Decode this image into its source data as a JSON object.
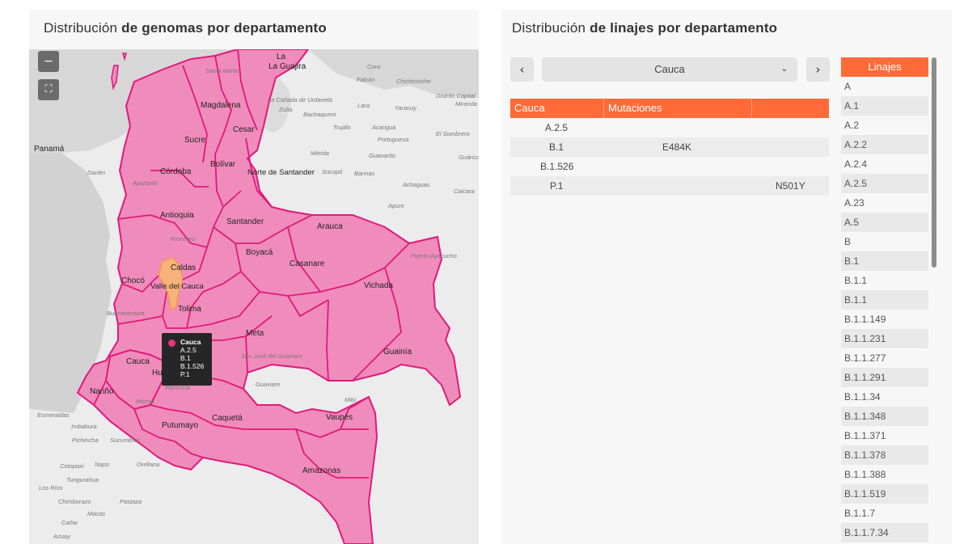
{
  "left_panel": {
    "title_regular": "Distribución ",
    "title_bold": "de genomas por departamento",
    "zoom_out_label": "−",
    "fullscreen_label": "⛶"
  },
  "map": {
    "highlight_color": "#f08cbb",
    "border_color": "#e0197b",
    "selected_color": "#f6b37a",
    "country_labels": [
      "Panamá"
    ],
    "department_labels": [
      "La Guajira",
      "Magdalena",
      "Cesar",
      "Sucre",
      "Bolívar",
      "Córdoba",
      "Norte de Santander",
      "Antioquia",
      "Santander",
      "Arauca",
      "Boyacá",
      "Casanare",
      "Caldas",
      "Chocó",
      "Valle del Cauca",
      "Tolima",
      "Vichada",
      "Meta",
      "Guainía",
      "Cauca",
      "Huila",
      "Nariño",
      "Caquetá",
      "Putumayo",
      "Vaupés",
      "Amazonas"
    ],
    "place_labels": [
      "Coro",
      "Falcón",
      "Chichiriviche",
      "Santa Marta",
      "La Cañada de Urdaneta",
      "Lara",
      "Yaracuy",
      "Distrito Capital",
      "Miranda",
      "Zulia",
      "Bachaquero",
      "Trujillo",
      "Acarigua",
      "Portuguesa",
      "El Sombrero",
      "Mérida",
      "Guanarito",
      "Guárico",
      "Socopó",
      "Barinas",
      "Darién",
      "Apartadó",
      "Achaguas",
      "Caicara",
      "Apure",
      "Rionegro",
      "Puerto Ayacucho",
      "Buenaventura",
      "San José del Guaviare",
      "Guaviare",
      "Mitú",
      "Florencia",
      "Mocoa",
      "Esmeraldas",
      "Imbabura",
      "Pichincha",
      "Sucumbíos",
      "Napo",
      "Orellana",
      "Cotopaxi",
      "Tungurahua",
      "Los Ríos",
      "Chimborazo",
      "Pastaza",
      "Macas",
      "Cañar",
      "Azuay"
    ],
    "tooltip": {
      "department": "Cauca",
      "lineages": [
        "A.2.5",
        "B.1",
        "B.1.526",
        "P.1"
      ]
    }
  },
  "right_panel": {
    "title_regular": "Distribución ",
    "title_bold": "de linajes por departamento",
    "prev_label": "‹",
    "next_label": "›",
    "selected_department": "Cauca",
    "select_chevron": "⌄",
    "table": {
      "headers": [
        "Cauca",
        "Mutaciones",
        ""
      ],
      "rows": [
        {
          "lineage": "A.2.5",
          "mutation": "",
          "extra": ""
        },
        {
          "lineage": "B.1",
          "mutation": "E484K",
          "extra": ""
        },
        {
          "lineage": "B.1.526",
          "mutation": "",
          "extra": ""
        },
        {
          "lineage": "P.1",
          "mutation": "",
          "extra": "N501Y"
        }
      ]
    },
    "lineage_list": {
      "header": "Linajes",
      "items": [
        "A",
        "A.1",
        "A.2",
        "A.2.2",
        "A.2.4",
        "A.2.5",
        "A.23",
        "A.5",
        "B",
        "B.1",
        "B.1.1",
        "B.1.1",
        "B.1.1.149",
        "B.1.1.231",
        "B.1.1.277",
        "B.1.1.291",
        "B.1.1.34",
        "B.1.1.348",
        "B.1.1.371",
        "B.1.1.378",
        "B.1.1.388",
        "B.1.1.519",
        "B.1.1.7",
        "B.1.1.7.34"
      ]
    },
    "accent_color": "#ff6b38"
  }
}
